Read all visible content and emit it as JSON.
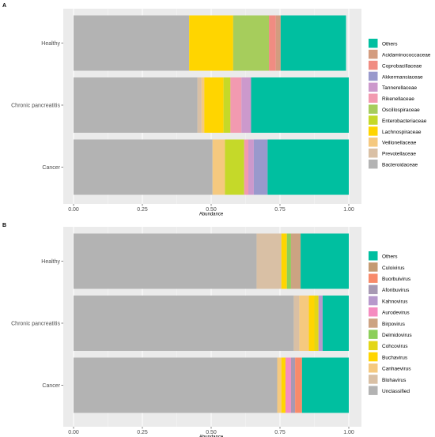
{
  "chart_data": [
    {
      "panel": "A",
      "type": "bar",
      "orientation": "horizontal",
      "stacked": true,
      "xlabel": "Abundance",
      "xlim": [
        0,
        1
      ],
      "x_ticks": [
        "0.00",
        "0.25",
        "0.50",
        "0.75",
        "1.00"
      ],
      "categories": [
        "Healthy",
        "Chronic pancreatitis",
        "Cancer"
      ],
      "legend_position": "right",
      "series": [
        {
          "name": "Bacteroidaceae",
          "color": "#b3b3b3",
          "values": [
            0.42,
            0.45,
            0.505
          ]
        },
        {
          "name": "Prevotellaceae",
          "color": "#d9c0a5",
          "values": [
            0.0,
            0.015,
            0.0
          ]
        },
        {
          "name": "Veillonellaceae",
          "color": "#f5c97f",
          "values": [
            0.0,
            0.01,
            0.045
          ]
        },
        {
          "name": "Lachnospiraceae",
          "color": "#ffd500",
          "values": [
            0.16,
            0.07,
            0.0
          ]
        },
        {
          "name": "Enterobacteriaceae",
          "color": "#c5d929",
          "values": [
            0.0,
            0.025,
            0.07
          ]
        },
        {
          "name": "Oscillospiraceae",
          "color": "#a6cd5c",
          "values": [
            0.13,
            0.0,
            0.0
          ]
        },
        {
          "name": "Rikenellaceae",
          "color": "#f29ab0",
          "values": [
            0.0,
            0.04,
            0.015
          ]
        },
        {
          "name": "Tannerellaceae",
          "color": "#cc99cc",
          "values": [
            0.0,
            0.035,
            0.02
          ]
        },
        {
          "name": "Akkermansiaceae",
          "color": "#9999cc",
          "values": [
            0.0,
            0.0,
            0.05
          ]
        },
        {
          "name": "Coprobacillaceae",
          "color": "#f08c82",
          "values": [
            0.025,
            0.0,
            0.0
          ]
        },
        {
          "name": "Acidaminococcaceae",
          "color": "#d39c7f",
          "values": [
            0.0175,
            0.0,
            0.0
          ]
        },
        {
          "name": "Others",
          "color": "#00bfa0",
          "values": [
            0.2375,
            0.355,
            0.295
          ]
        }
      ]
    },
    {
      "panel": "B",
      "type": "bar",
      "orientation": "horizontal",
      "stacked": true,
      "xlabel": "Abundance",
      "xlim": [
        0,
        1
      ],
      "x_ticks": [
        "0.00",
        "0.25",
        "0.50",
        "0.75",
        "1.00"
      ],
      "categories": [
        "Healthy",
        "Chronic pancreatitis",
        "Cancer"
      ],
      "legend_position": "right",
      "series": [
        {
          "name": "Unclassified",
          "color": "#b3b3b3",
          "values": [
            0.665,
            0.8,
            0.74
          ]
        },
        {
          "name": "Blohavirus",
          "color": "#d9c0a5",
          "values": [
            0.09,
            0.02,
            0.0
          ]
        },
        {
          "name": "Canhaevirus",
          "color": "#f5c97f",
          "values": [
            0.0,
            0.035,
            0.015
          ]
        },
        {
          "name": "Buchavirus",
          "color": "#ffd500",
          "values": [
            0.02,
            0.02,
            0.015
          ]
        },
        {
          "name": "Cohcovirus",
          "color": "#e3d616",
          "values": [
            0.0,
            0.015,
            0.0
          ]
        },
        {
          "name": "Delmidovirus",
          "color": "#8ccf5a",
          "values": [
            0.015,
            0.0,
            0.0
          ]
        },
        {
          "name": "Birpovirus",
          "color": "#cca382",
          "values": [
            0.035,
            0.0,
            0.0
          ]
        },
        {
          "name": "Aurodevirus",
          "color": "#f58cc0",
          "values": [
            0.0,
            0.0,
            0.02
          ]
        },
        {
          "name": "Kahnovirus",
          "color": "#b799cc",
          "values": [
            0.0,
            0.015,
            0.0
          ]
        },
        {
          "name": "Afonbuvirus",
          "color": "#a799b3",
          "values": [
            0.0,
            0.0,
            0.015
          ]
        },
        {
          "name": "Buorbuivirus",
          "color": "#f88a6a",
          "values": [
            0.0,
            0.0,
            0.025
          ]
        },
        {
          "name": "Culoivirus",
          "color": "#c49a72",
          "values": [
            0.0,
            0.0,
            0.0
          ]
        },
        {
          "name": "Others",
          "color": "#00bfa0",
          "values": [
            0.175,
            0.095,
            0.17
          ]
        }
      ]
    }
  ]
}
